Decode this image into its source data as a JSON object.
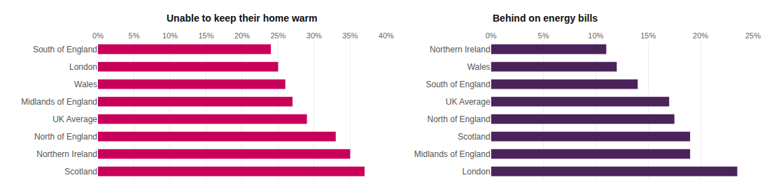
{
  "chart_data": [
    {
      "type": "bar",
      "orientation": "horizontal",
      "title": "Unable to keep their home warm",
      "categories": [
        "South of England",
        "London",
        "Wales",
        "Midlands of England",
        "UK Average",
        "North of England",
        "Northern Ireland",
        "Scotland"
      ],
      "values": [
        24,
        25,
        26,
        27,
        29,
        33,
        35,
        37
      ],
      "color": "#C8005A",
      "xlim": [
        0,
        40
      ],
      "xticks": [
        {
          "value": 0,
          "label": "0%"
        },
        {
          "value": 5,
          "label": "5%"
        },
        {
          "value": 10,
          "label": "10%"
        },
        {
          "value": 15,
          "label": "15%"
        },
        {
          "value": 20,
          "label": "20%"
        },
        {
          "value": 25,
          "label": "25%"
        },
        {
          "value": 30,
          "label": "30%"
        },
        {
          "value": 35,
          "label": "35%"
        },
        {
          "value": 40,
          "label": "40%"
        }
      ],
      "grid": true
    },
    {
      "type": "bar",
      "orientation": "horizontal",
      "title": "Behind on energy bills",
      "categories": [
        "Northern Ireland",
        "Wales",
        "South of England",
        "UK Average",
        "North of England",
        "Scotland",
        "Midlands of England",
        "London"
      ],
      "values": [
        11,
        12,
        14,
        17,
        17.5,
        19,
        19,
        23.5
      ],
      "color": "#4A235A",
      "xlim": [
        0,
        25
      ],
      "xticks": [
        {
          "value": 0,
          "label": "0%"
        },
        {
          "value": 5,
          "label": "5%"
        },
        {
          "value": 10,
          "label": "10%"
        },
        {
          "value": 15,
          "label": "15%"
        },
        {
          "value": 20,
          "label": "20%"
        },
        {
          "value": 25,
          "label": "25%"
        }
      ],
      "grid": true
    }
  ]
}
